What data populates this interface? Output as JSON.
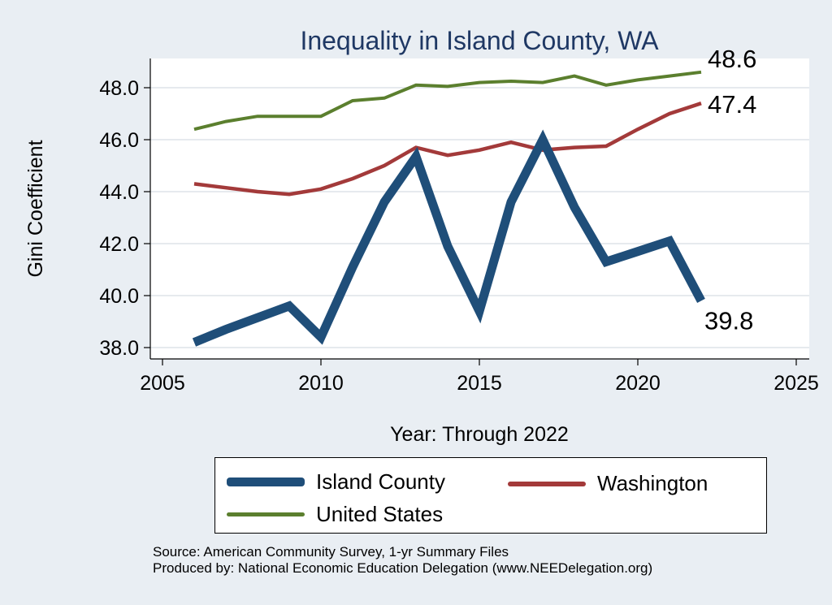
{
  "chart_data": {
    "type": "line",
    "title": "Inequality in Island County, WA",
    "xlabel": "Year: Through 2022",
    "ylabel": "Gini Coefficient",
    "xlim": [
      2005,
      2025
    ],
    "ylim": [
      37.6,
      49.2
    ],
    "x_ticks": [
      "2005",
      "2010",
      "2015",
      "2020",
      "2025"
    ],
    "y_ticks": [
      "38.0",
      "40.0",
      "42.0",
      "44.0",
      "46.0",
      "48.0"
    ],
    "grid": true,
    "legend_position": "bottom",
    "series": [
      {
        "name": "Island County",
        "color": "#1f4e79",
        "x": [
          2006,
          2007,
          2008,
          2009,
          2010,
          2011,
          2012,
          2013,
          2014,
          2015,
          2016,
          2017,
          2018,
          2019,
          2020,
          2021,
          2022
        ],
        "y": [
          38.2,
          38.7,
          39.15,
          39.6,
          38.4,
          41.1,
          43.6,
          45.35,
          41.9,
          39.4,
          43.6,
          46.0,
          43.4,
          41.3,
          41.7,
          42.1,
          39.8
        ],
        "end_label": "39.8"
      },
      {
        "name": "Washington",
        "color": "#a33a3a",
        "x": [
          2006,
          2007,
          2008,
          2009,
          2010,
          2011,
          2012,
          2013,
          2014,
          2015,
          2016,
          2017,
          2018,
          2019,
          2020,
          2021,
          2022
        ],
        "y": [
          44.3,
          44.15,
          44.0,
          43.9,
          44.1,
          44.5,
          45.0,
          45.7,
          45.4,
          45.6,
          45.9,
          45.6,
          45.7,
          45.75,
          46.4,
          47.0,
          47.4
        ],
        "end_label": "47.4"
      },
      {
        "name": "United States",
        "color": "#5b7f2e",
        "x": [
          2006,
          2007,
          2008,
          2009,
          2010,
          2011,
          2012,
          2013,
          2014,
          2015,
          2016,
          2017,
          2018,
          2019,
          2020,
          2021,
          2022
        ],
        "y": [
          46.4,
          46.7,
          46.9,
          46.9,
          46.9,
          47.5,
          47.6,
          48.1,
          48.05,
          48.2,
          48.25,
          48.2,
          48.45,
          48.1,
          48.3,
          48.45,
          48.6
        ],
        "end_label": "48.6"
      }
    ]
  },
  "source_line1": "Source: American Community Survey, 1-yr Summary Files",
  "source_line2": "Produced by: National Economic Education Delegation (www.NEEDelegation.org)"
}
